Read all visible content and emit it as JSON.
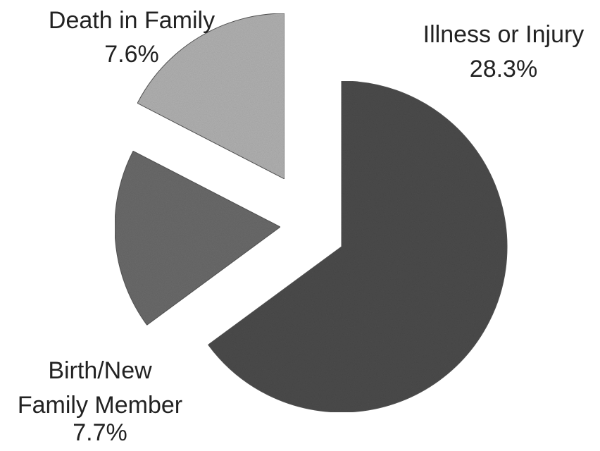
{
  "chart_data": {
    "type": "pie",
    "title": "",
    "slices": [
      {
        "label": "Illness or Injury",
        "value": 28.3,
        "value_label": "28.3%",
        "color": "#4d4d4d"
      },
      {
        "label": "Birth/New Family Member",
        "value": 7.7,
        "value_label": "7.7%",
        "color": "#6c6c6c"
      },
      {
        "label": "Death in Family",
        "value": 7.6,
        "value_label": "7.6%",
        "color": "#b2b2b2"
      }
    ],
    "exploded": true,
    "legend": "none"
  }
}
